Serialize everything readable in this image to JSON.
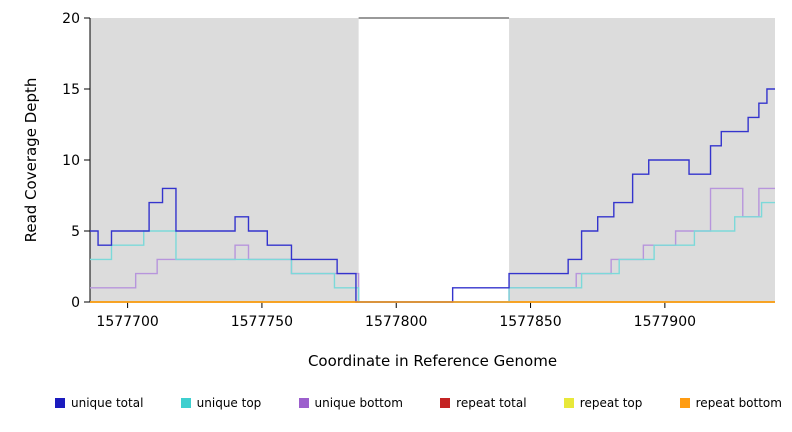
{
  "chart_data": {
    "type": "line",
    "title": "",
    "xlabel": "Coordinate in Reference Genome",
    "ylabel": "Read Coverage Depth",
    "xlim": [
      1577686,
      1577941
    ],
    "ylim": [
      0,
      20
    ],
    "xticks": [
      1577700,
      1577750,
      1577800,
      1577850,
      1577900
    ],
    "yticks": [
      0,
      5,
      10,
      15,
      20
    ],
    "grid": false,
    "legend_position": "bottom",
    "shaded_regions": {
      "color": "#dcdcdc",
      "ranges": [
        [
          1577686,
          1577786
        ],
        [
          1577842,
          1577941
        ]
      ]
    },
    "gap_top_border": [
      1577786,
      1577842
    ],
    "series": [
      {
        "name": "repeat total",
        "color": "#c42424",
        "steps": [
          [
            1577686,
            0
          ]
        ]
      },
      {
        "name": "repeat top",
        "color": "#e8e83a",
        "steps": [
          [
            1577686,
            0
          ]
        ]
      },
      {
        "name": "unique bottom",
        "color": "#b795dc",
        "steps": [
          [
            1577686,
            1
          ],
          [
            1577703,
            2
          ],
          [
            1577711,
            3
          ],
          [
            1577740,
            4
          ],
          [
            1577745,
            3
          ],
          [
            1577761,
            2
          ],
          [
            1577786,
            0
          ],
          [
            1577842,
            1
          ],
          [
            1577867,
            2
          ],
          [
            1577880,
            3
          ],
          [
            1577892,
            4
          ],
          [
            1577904,
            5
          ],
          [
            1577917,
            8
          ],
          [
            1577929,
            6
          ],
          [
            1577935,
            8
          ]
        ]
      },
      {
        "name": "unique top",
        "color": "#7cd9d9",
        "steps": [
          [
            1577686,
            3
          ],
          [
            1577694,
            4
          ],
          [
            1577706,
            5
          ],
          [
            1577718,
            3
          ],
          [
            1577761,
            2
          ],
          [
            1577777,
            1
          ],
          [
            1577786,
            0
          ],
          [
            1577842,
            1
          ],
          [
            1577869,
            2
          ],
          [
            1577883,
            3
          ],
          [
            1577896,
            4
          ],
          [
            1577911,
            5
          ],
          [
            1577926,
            6
          ],
          [
            1577936,
            7
          ]
        ]
      },
      {
        "name": "unique total",
        "color": "#3434cd",
        "steps": [
          [
            1577686,
            5
          ],
          [
            1577689,
            4
          ],
          [
            1577694,
            5
          ],
          [
            1577708,
            7
          ],
          [
            1577713,
            8
          ],
          [
            1577718,
            5
          ],
          [
            1577740,
            6
          ],
          [
            1577745,
            5
          ],
          [
            1577752,
            4
          ],
          [
            1577761,
            3
          ],
          [
            1577778,
            2
          ],
          [
            1577785,
            0
          ],
          [
            1577821,
            1
          ],
          [
            1577842,
            2
          ],
          [
            1577864,
            3
          ],
          [
            1577869,
            5
          ],
          [
            1577875,
            6
          ],
          [
            1577881,
            7
          ],
          [
            1577888,
            9
          ],
          [
            1577894,
            10
          ],
          [
            1577909,
            9
          ],
          [
            1577917,
            11
          ],
          [
            1577921,
            12
          ],
          [
            1577931,
            13
          ],
          [
            1577935,
            14
          ],
          [
            1577938,
            15
          ]
        ]
      },
      {
        "name": "repeat bottom",
        "color": "#ff9c12",
        "steps": [
          [
            1577686,
            0
          ]
        ]
      }
    ],
    "legend": [
      {
        "label": "unique total",
        "color": "#1b1bbe"
      },
      {
        "label": "unique top",
        "color": "#3ecfcf"
      },
      {
        "label": "unique bottom",
        "color": "#9c5fcd"
      },
      {
        "label": "repeat total",
        "color": "#c42424"
      },
      {
        "label": "repeat top",
        "color": "#e8e83a"
      },
      {
        "label": "repeat bottom",
        "color": "#ff9c12"
      }
    ]
  }
}
